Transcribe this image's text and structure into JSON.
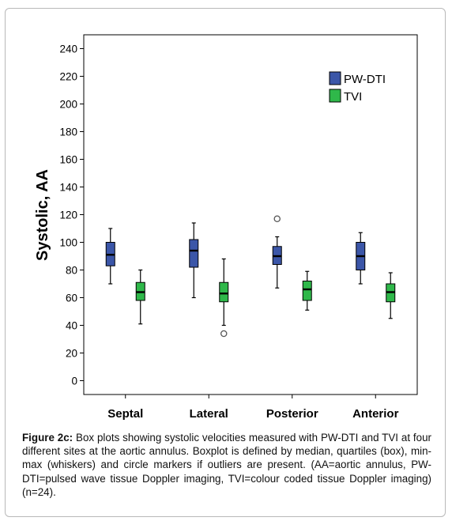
{
  "chart_data": {
    "type": "boxplot",
    "ylabel": "Systolic, AA",
    "xlabel": "",
    "ylim": [
      -10,
      250
    ],
    "yticks": [
      0,
      20,
      40,
      60,
      80,
      100,
      120,
      140,
      160,
      180,
      200,
      220,
      240
    ],
    "categories": [
      "Septal",
      "Lateral",
      "Posterior",
      "Anterior"
    ],
    "legend_position": "top-right",
    "series": [
      {
        "name": "PW-DTI",
        "color": "#3b56a8",
        "boxes": [
          {
            "min": 70,
            "q1": 83,
            "median": 91,
            "q3": 100,
            "max": 110,
            "outliers": []
          },
          {
            "min": 60,
            "q1": 82,
            "median": 94,
            "q3": 102,
            "max": 114,
            "outliers": []
          },
          {
            "min": 67,
            "q1": 84,
            "median": 90,
            "q3": 97,
            "max": 104,
            "outliers": [
              117
            ]
          },
          {
            "min": 70,
            "q1": 80,
            "median": 90,
            "q3": 100,
            "max": 107,
            "outliers": []
          }
        ]
      },
      {
        "name": "TVI",
        "color": "#2fb84a",
        "boxes": [
          {
            "min": 41,
            "q1": 58,
            "median": 64,
            "q3": 71,
            "max": 80,
            "outliers": []
          },
          {
            "min": 40,
            "q1": 57,
            "median": 63,
            "q3": 71,
            "max": 88,
            "outliers": [
              34
            ]
          },
          {
            "min": 51,
            "q1": 58,
            "median": 66,
            "q3": 72,
            "max": 79,
            "outliers": []
          },
          {
            "min": 45,
            "q1": 57,
            "median": 64,
            "q3": 70,
            "max": 78,
            "outliers": []
          }
        ]
      }
    ]
  },
  "caption": {
    "label": "Figure 2c:",
    "text": " Box plots showing systolic velocities measured with PW-DTI and TVI at four different sites at the aortic annulus. Boxplot is defined by median, quartiles (box), min-max (whiskers) and circle markers if outliers are present. (AA=aortic annulus, PW-DTI=pulsed wave tissue Doppler imaging, TVI=colour coded tissue Doppler imaging) (n=24)."
  }
}
